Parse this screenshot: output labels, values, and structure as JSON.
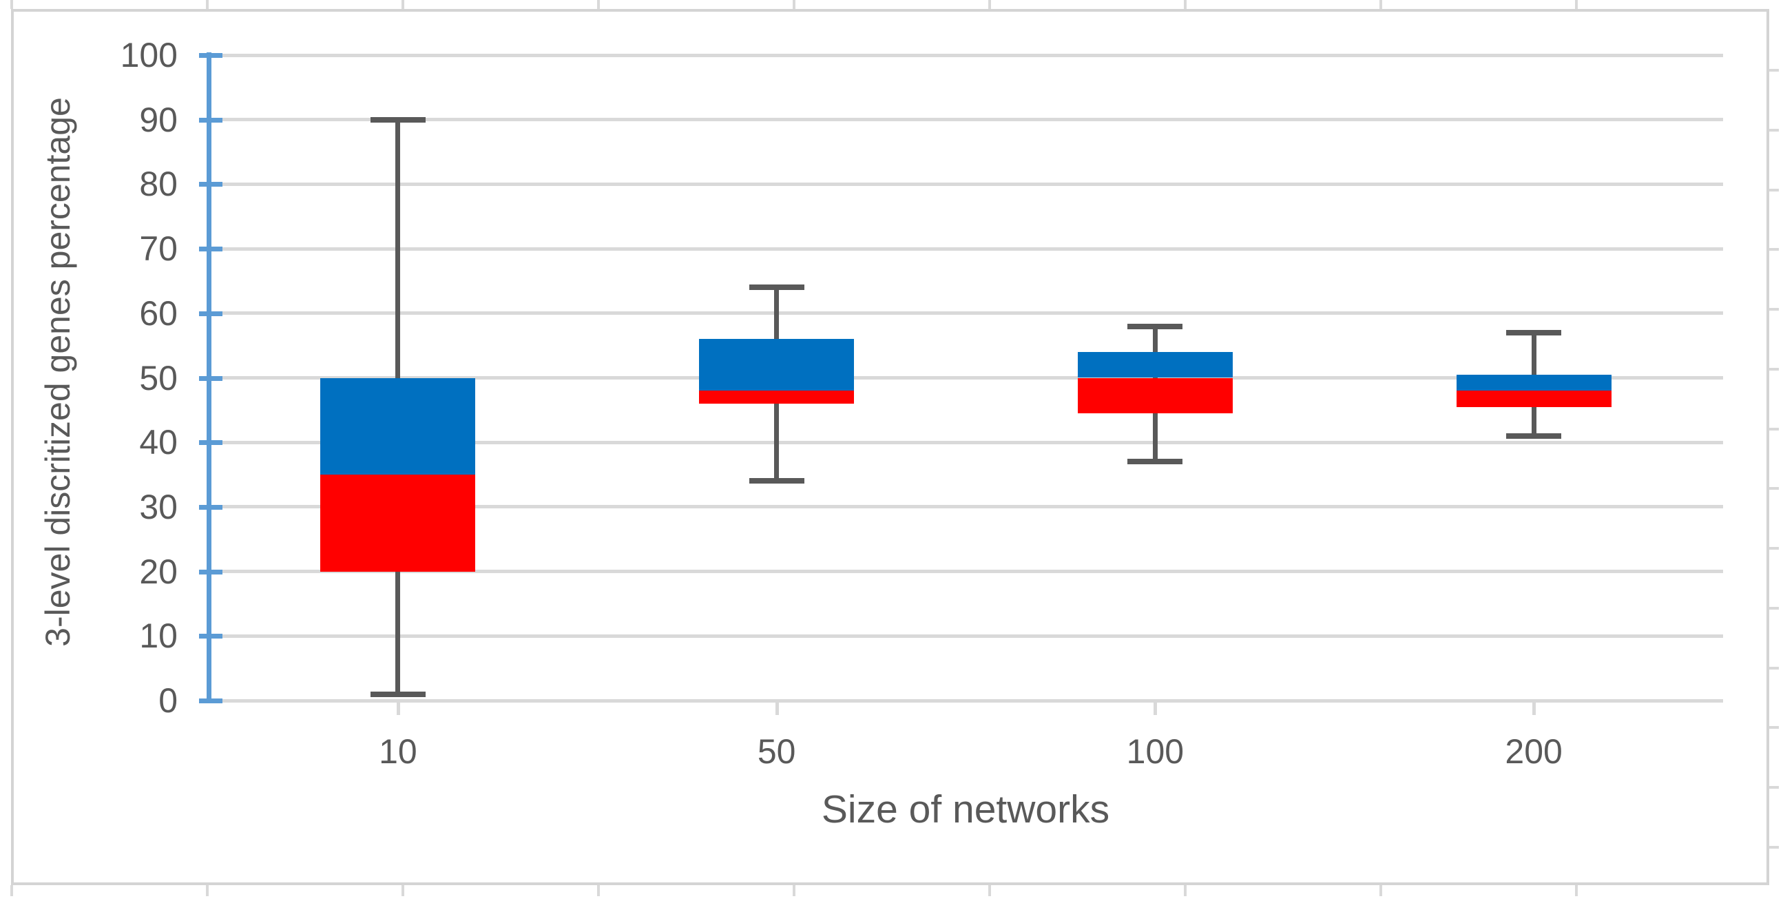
{
  "chart_data": {
    "type": "boxplot",
    "xlabel": "Size of networks",
    "ylabel": "3-level discritized genes percentage",
    "categories": [
      "10",
      "50",
      "100",
      "200"
    ],
    "y_axis": {
      "min": 0,
      "max": 100,
      "step": 10,
      "tick_labels": [
        "0",
        "10",
        "20",
        "30",
        "40",
        "50",
        "60",
        "70",
        "80",
        "90",
        "100"
      ]
    },
    "series": [
      {
        "category": "10",
        "whisker_low": 1,
        "q1": 20,
        "median": 35,
        "q3": 50,
        "whisker_high": 90
      },
      {
        "category": "50",
        "whisker_low": 34,
        "q1": 46,
        "median": 48,
        "q3": 56,
        "whisker_high": 64
      },
      {
        "category": "100",
        "whisker_low": 37,
        "q1": 44.5,
        "median": 50,
        "q3": 54,
        "whisker_high": 58
      },
      {
        "category": "200",
        "whisker_low": 41,
        "q1": 45.5,
        "median": 48,
        "q3": 50.5,
        "whisker_high": 57
      }
    ],
    "legend": "none",
    "grid": "horizontal",
    "colors": {
      "upper_box": "#0070C0",
      "lower_box": "#FF0000",
      "whisker": "#595959",
      "gridline": "#D9D9D9",
      "axis_line": "#5B9BD5",
      "label_text": "#595959",
      "frame_border": "#D4D4D4"
    }
  }
}
